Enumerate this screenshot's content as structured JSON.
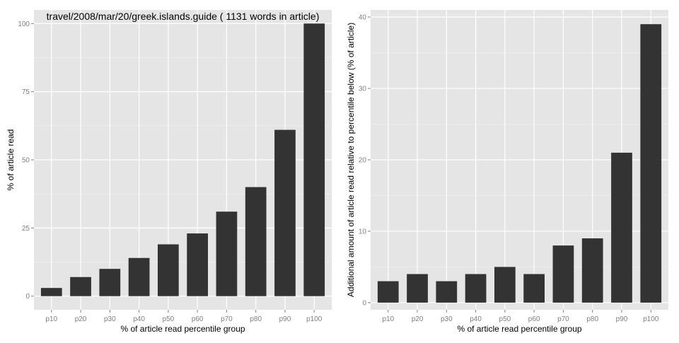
{
  "colors": {
    "panel_bg": "#e5e5e5",
    "grid_major": "#ffffff",
    "grid_minor": "#f2f2f2",
    "bar": "#333333",
    "tick_text": "#7f7f7f",
    "label_text": "#000000"
  },
  "chart_data": [
    {
      "type": "bar",
      "title": "travel/2008/mar/20/greek.islands.guide ( 1131 words in article)",
      "xlabel": "% of article read percentile group",
      "ylabel": "% of article read",
      "categories": [
        "p10",
        "p20",
        "p30",
        "p40",
        "p50",
        "p60",
        "p70",
        "p80",
        "p90",
        "p100"
      ],
      "values": [
        3,
        7,
        10,
        14,
        19,
        23,
        31,
        40,
        61,
        100
      ],
      "ylim": [
        -5,
        105
      ],
      "yticks": [
        0,
        25,
        50,
        75,
        100
      ],
      "grid": true,
      "legend": "none"
    },
    {
      "type": "bar",
      "title": "",
      "xlabel": "% of article read percentile group",
      "ylabel": "Additional amount of article read relative to percentile below (% of article)",
      "categories": [
        "p10",
        "p20",
        "p30",
        "p40",
        "p50",
        "p60",
        "p70",
        "p80",
        "p90",
        "p100"
      ],
      "values": [
        3,
        4,
        3,
        4,
        5,
        4,
        8,
        9,
        21,
        39
      ],
      "ylim": [
        -1,
        41
      ],
      "yticks": [
        0,
        10,
        20,
        30,
        40
      ],
      "grid": true,
      "legend": "none"
    }
  ]
}
